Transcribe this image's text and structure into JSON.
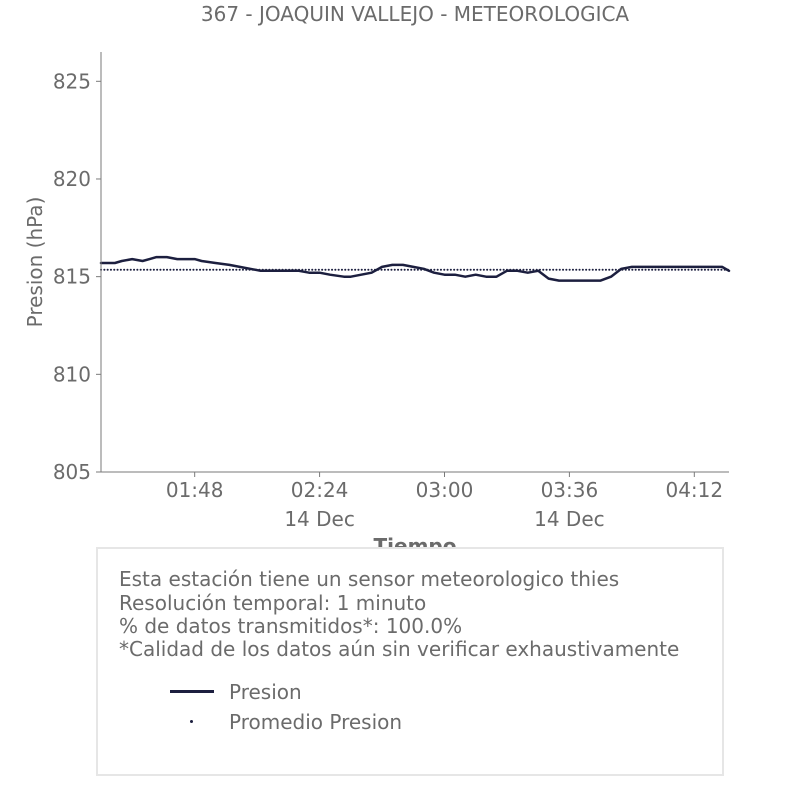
{
  "colors": {
    "series": "#1c1f3f",
    "text": "#6b6b6b",
    "axis": "#7a7a7a",
    "box_border": "#e6e6e6"
  },
  "chart_data": {
    "type": "line",
    "title": "367 - JOAQUIN VALLEJO - METEOROLOGICA",
    "xlabel": "Tiempo",
    "ylabel": "Presion (hPa)",
    "ylim": [
      805,
      826.5
    ],
    "xlim": [
      "01:21",
      "04:22"
    ],
    "grid": false,
    "y_ticks": [
      "805",
      "810",
      "815",
      "820",
      "825"
    ],
    "x_ticks": [
      {
        "time": "01:48",
        "label": "01:48",
        "sublabel": ""
      },
      {
        "time": "02:24",
        "label": "02:24",
        "sublabel": "14 Dec"
      },
      {
        "time": "03:00",
        "label": "03:00",
        "sublabel": ""
      },
      {
        "time": "03:36",
        "label": "03:36",
        "sublabel": "14 Dec"
      },
      {
        "time": "04:12",
        "label": "04:12",
        "sublabel": ""
      }
    ],
    "series": [
      {
        "name": "Presion",
        "style": "solid",
        "x": [
          "01:21",
          "01:25",
          "01:27",
          "01:30",
          "01:33",
          "01:35",
          "01:37",
          "01:40",
          "01:43",
          "01:45",
          "01:48",
          "01:50",
          "01:54",
          "01:58",
          "02:01",
          "02:04",
          "02:07",
          "02:10",
          "02:13",
          "02:15",
          "02:18",
          "02:21",
          "02:24",
          "02:27",
          "02:31",
          "02:33",
          "02:36",
          "02:39",
          "02:42",
          "02:45",
          "02:48",
          "02:51",
          "02:54",
          "02:57",
          "03:00",
          "03:03",
          "03:06",
          "03:09",
          "03:12",
          "03:15",
          "03:18",
          "03:21",
          "03:24",
          "03:27",
          "03:30",
          "03:33",
          "03:36",
          "03:39",
          "03:42",
          "03:45",
          "03:48",
          "03:51",
          "03:54",
          "03:57",
          "04:00",
          "04:03",
          "04:06",
          "04:09",
          "04:12",
          "04:15",
          "04:18",
          "04:20",
          "04:22"
        ],
        "values": [
          815.7,
          815.7,
          815.8,
          815.9,
          815.8,
          815.9,
          816.0,
          816.0,
          815.9,
          815.9,
          815.9,
          815.8,
          815.7,
          815.6,
          815.5,
          815.4,
          815.3,
          815.3,
          815.3,
          815.3,
          815.3,
          815.2,
          815.2,
          815.1,
          815.0,
          815.0,
          815.1,
          815.2,
          815.5,
          815.6,
          815.6,
          815.5,
          815.4,
          815.2,
          815.1,
          815.1,
          815.0,
          815.1,
          815.0,
          815.0,
          815.3,
          815.3,
          815.2,
          815.3,
          814.9,
          814.8,
          814.8,
          814.8,
          814.8,
          814.8,
          815.0,
          815.4,
          815.5,
          815.5,
          815.5,
          815.5,
          815.5,
          815.5,
          815.5,
          815.5,
          815.5,
          815.5,
          815.3
        ]
      },
      {
        "name": "Promedio Presion",
        "style": "dotted",
        "x": [
          "01:21",
          "04:22"
        ],
        "values": [
          815.35,
          815.35
        ]
      }
    ]
  },
  "info": {
    "lines": [
      "Esta estación tiene un sensor meteorologico thies",
      "Resolución temporal: 1 minuto",
      "% de datos transmitidos*: 100.0%",
      "*Calidad de los datos aún sin verificar exhaustivamente"
    ],
    "legend": [
      {
        "label": "Presion",
        "swatch": "solid"
      },
      {
        "label": "Promedio Presion",
        "swatch": "dot"
      }
    ]
  }
}
